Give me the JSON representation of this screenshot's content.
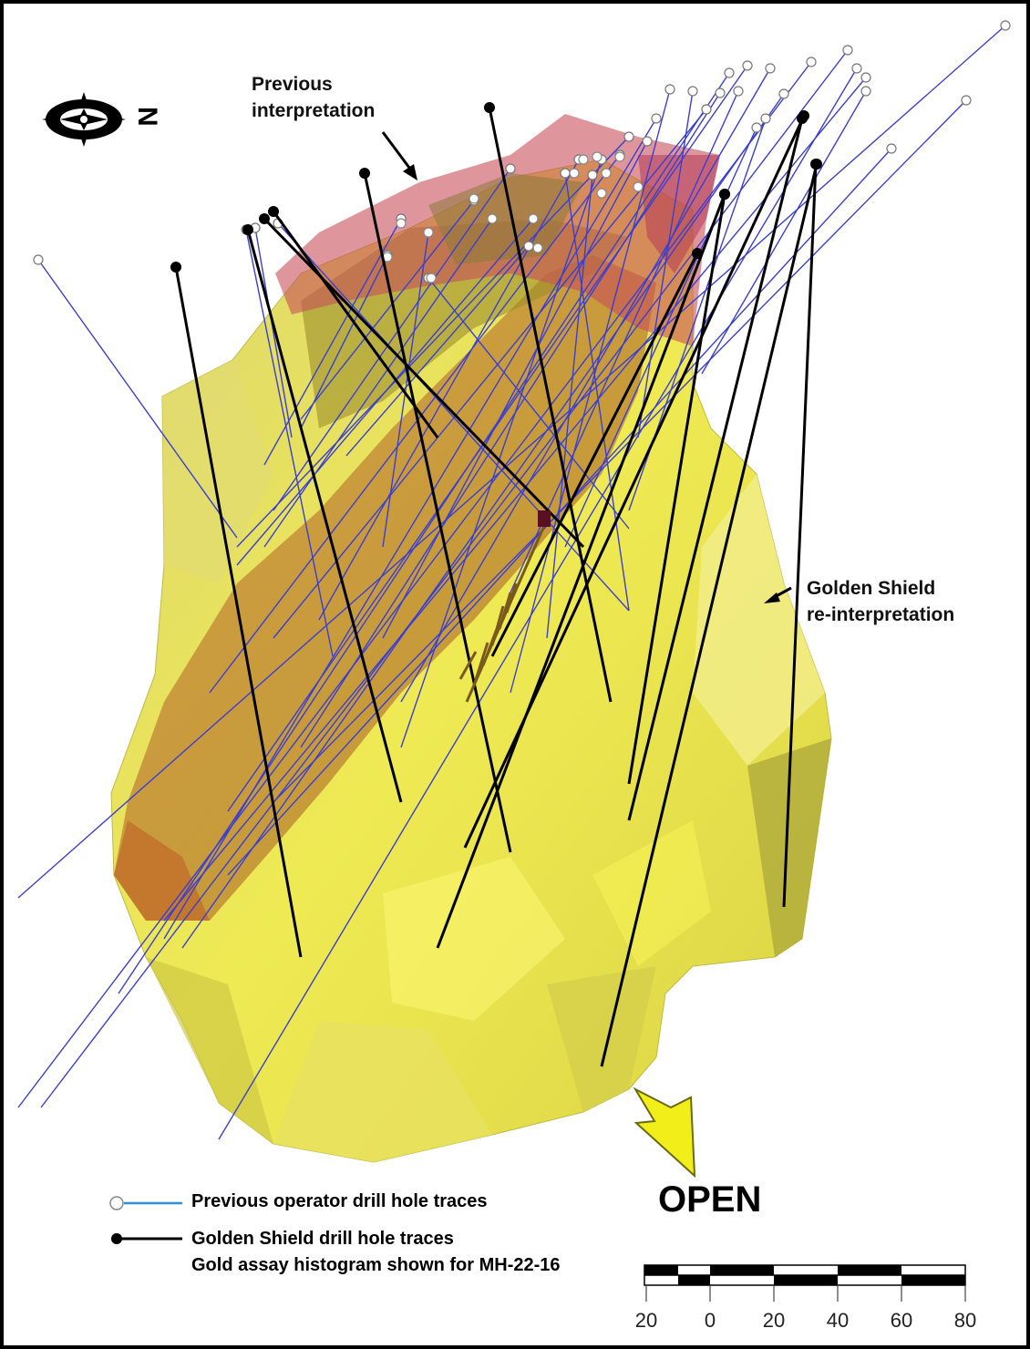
{
  "labels": {
    "previous_interpretation_line1": "Previous",
    "previous_interpretation_line2": "interpretation",
    "golden_shield_line1": "Golden Shield",
    "golden_shield_line2": "re-interpretation",
    "open": "OPEN"
  },
  "legend": {
    "previous_operator": "Previous operator drill hole traces",
    "golden_shield": "Golden Shield drill hole traces",
    "histogram_note": "Gold assay histogram shown for MH-22-16"
  },
  "north_arrow": {
    "icon": "compass-rose-icon",
    "letter": "N"
  },
  "scale_bar": {
    "ticks": [
      "20",
      "0",
      "20",
      "40",
      "60",
      "80"
    ]
  },
  "colors": {
    "previous_trace": "#3b3fd0",
    "golden_shield_trace": "#000000",
    "new_interpretation": "#e6e03a",
    "previous_interpretation": "#c8505a",
    "open_arrow": "#f2ee1a"
  }
}
